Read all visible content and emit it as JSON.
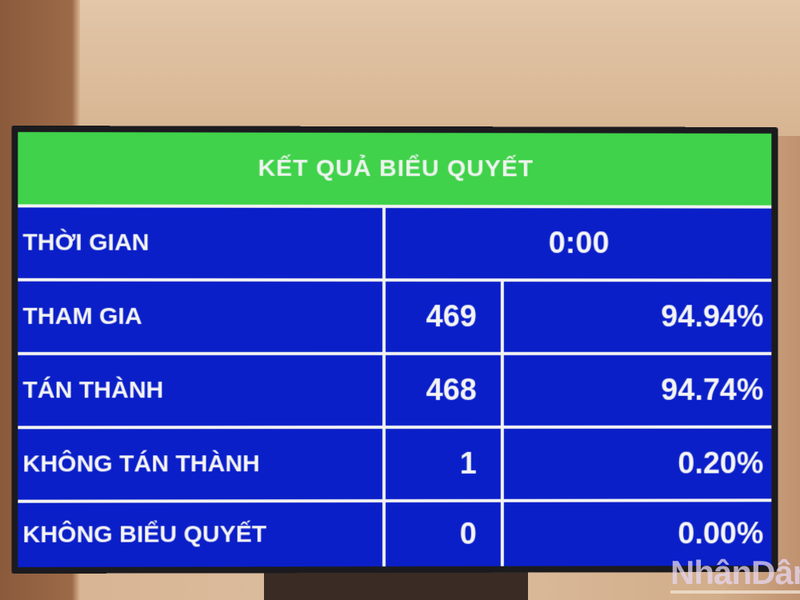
{
  "title": "KẾT QUẢ BIỂU QUYẾT",
  "rows": [
    {
      "label": "THỜI GIAN",
      "value": "0:00"
    },
    {
      "label": "THAM GIA",
      "count": "469",
      "percent": "94.94%"
    },
    {
      "label": "TÁN THÀNH",
      "count": "468",
      "percent": "94.74%"
    },
    {
      "label": "KHÔNG TÁN THÀNH",
      "count": "1",
      "percent": "0.20%"
    },
    {
      "label": "KHÔNG BIỂU QUYẾT",
      "count": "0",
      "percent": "0.00%"
    }
  ],
  "watermark": "NhânDân",
  "colors": {
    "header": "#3fd24a",
    "cells": "#0a1fc8",
    "text": "#f4f4f4"
  }
}
